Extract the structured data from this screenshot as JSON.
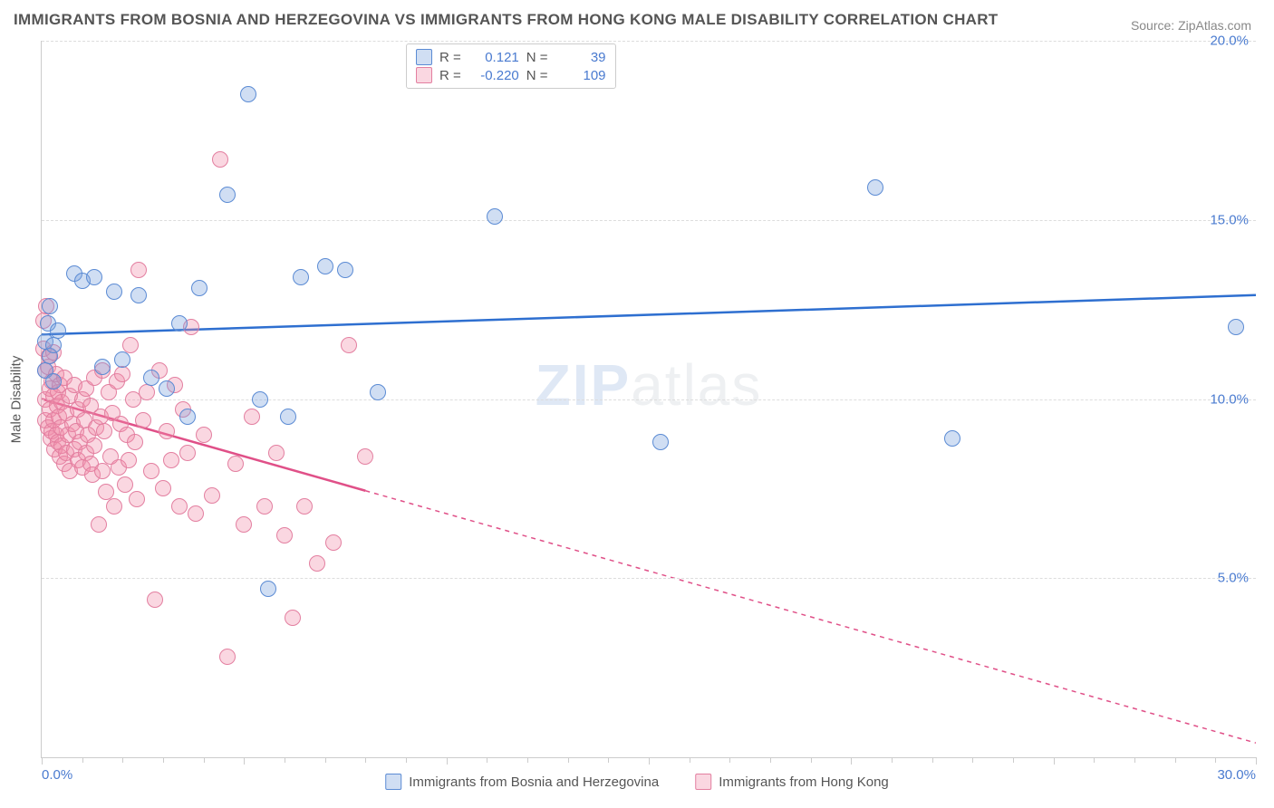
{
  "title": "IMMIGRANTS FROM BOSNIA AND HERZEGOVINA VS IMMIGRANTS FROM HONG KONG MALE DISABILITY CORRELATION CHART",
  "source": "Source: ZipAtlas.com",
  "watermark_zip": "ZIP",
  "watermark_atlas": "atlas",
  "y_axis_label": "Male Disability",
  "chart": {
    "type": "scatter",
    "background_color": "#ffffff",
    "grid_color": "#dddddd",
    "axis_color": "#cccccc",
    "xlim": [
      0,
      30
    ],
    "ylim": [
      0,
      20
    ],
    "x_ticks": [
      0,
      1,
      2,
      3,
      4,
      5,
      6,
      7,
      8,
      9,
      10,
      11,
      12,
      13,
      14,
      15,
      16,
      17,
      18,
      19,
      20,
      21,
      22,
      23,
      24,
      25,
      26,
      27,
      28,
      29,
      30
    ],
    "x_major_ticks": [
      0,
      5,
      10,
      15,
      20,
      25,
      30
    ],
    "y_gridlines": [
      5,
      10,
      15,
      20
    ],
    "x_tick_labels": {
      "start": "0.0%",
      "end": "30.0%"
    },
    "y_tick_labels": [
      "5.0%",
      "10.0%",
      "15.0%",
      "20.0%"
    ],
    "marker_radius": 9,
    "series": [
      {
        "name": "Immigrants from Bosnia and Herzegovina",
        "fill": "rgba(120,160,220,0.35)",
        "stroke": "#5b8bd4",
        "line_color": "#2e6fd0",
        "trend": {
          "y_at_x0": 11.8,
          "y_at_xmax": 12.9,
          "solid_until_x": 30
        },
        "R_label": "R =",
        "R": "0.121",
        "N_label": "N =",
        "N": "39",
        "points": [
          [
            0.1,
            11.6
          ],
          [
            0.1,
            10.8
          ],
          [
            0.15,
            12.1
          ],
          [
            0.2,
            11.2
          ],
          [
            0.2,
            12.6
          ],
          [
            0.3,
            10.5
          ],
          [
            0.3,
            11.5
          ],
          [
            0.4,
            11.9
          ],
          [
            0.8,
            13.5
          ],
          [
            1.0,
            13.3
          ],
          [
            1.3,
            13.4
          ],
          [
            1.5,
            10.9
          ],
          [
            1.8,
            13.0
          ],
          [
            2.0,
            11.1
          ],
          [
            2.4,
            12.9
          ],
          [
            2.7,
            10.6
          ],
          [
            3.1,
            10.3
          ],
          [
            3.4,
            12.1
          ],
          [
            3.6,
            9.5
          ],
          [
            3.9,
            13.1
          ],
          [
            4.6,
            15.7
          ],
          [
            5.1,
            18.5
          ],
          [
            5.4,
            10.0
          ],
          [
            5.6,
            4.7
          ],
          [
            6.1,
            9.5
          ],
          [
            6.4,
            13.4
          ],
          [
            7.0,
            13.7
          ],
          [
            7.5,
            13.6
          ],
          [
            8.3,
            10.2
          ],
          [
            11.2,
            15.1
          ],
          [
            15.3,
            8.8
          ],
          [
            20.6,
            15.9
          ],
          [
            22.5,
            8.9
          ],
          [
            29.5,
            12.0
          ]
        ]
      },
      {
        "name": "Immigrants from Hong Kong",
        "fill": "rgba(240,140,170,0.35)",
        "stroke": "#e37fa0",
        "line_color": "#e05088",
        "trend": {
          "y_at_x0": 10.0,
          "y_at_xmax": 0.4,
          "solid_until_x": 8
        },
        "R_label": "R =",
        "R": "-0.220",
        "N_label": "N =",
        "N": "109",
        "points": [
          [
            0.05,
            12.2
          ],
          [
            0.05,
            11.4
          ],
          [
            0.08,
            10.8
          ],
          [
            0.1,
            10.0
          ],
          [
            0.1,
            9.4
          ],
          [
            0.12,
            12.6
          ],
          [
            0.15,
            10.9
          ],
          [
            0.15,
            9.2
          ],
          [
            0.18,
            11.2
          ],
          [
            0.2,
            10.3
          ],
          [
            0.2,
            9.7
          ],
          [
            0.22,
            8.9
          ],
          [
            0.25,
            10.5
          ],
          [
            0.25,
            9.1
          ],
          [
            0.28,
            10.1
          ],
          [
            0.3,
            11.3
          ],
          [
            0.3,
            9.4
          ],
          [
            0.32,
            8.6
          ],
          [
            0.35,
            10.7
          ],
          [
            0.35,
            9.0
          ],
          [
            0.38,
            9.8
          ],
          [
            0.4,
            10.2
          ],
          [
            0.4,
            8.8
          ],
          [
            0.42,
            9.5
          ],
          [
            0.45,
            10.4
          ],
          [
            0.45,
            8.4
          ],
          [
            0.48,
            9.2
          ],
          [
            0.5,
            9.9
          ],
          [
            0.5,
            8.7
          ],
          [
            0.55,
            10.6
          ],
          [
            0.55,
            8.2
          ],
          [
            0.6,
            9.6
          ],
          [
            0.6,
            8.5
          ],
          [
            0.65,
            9.0
          ],
          [
            0.7,
            10.1
          ],
          [
            0.7,
            8.0
          ],
          [
            0.75,
            9.3
          ],
          [
            0.8,
            8.6
          ],
          [
            0.8,
            10.4
          ],
          [
            0.85,
            9.1
          ],
          [
            0.9,
            8.3
          ],
          [
            0.9,
            9.7
          ],
          [
            0.95,
            8.8
          ],
          [
            1.0,
            10.0
          ],
          [
            1.0,
            8.1
          ],
          [
            1.05,
            9.4
          ],
          [
            1.1,
            8.5
          ],
          [
            1.1,
            10.3
          ],
          [
            1.15,
            9.0
          ],
          [
            1.2,
            8.2
          ],
          [
            1.2,
            9.8
          ],
          [
            1.25,
            7.9
          ],
          [
            1.3,
            10.6
          ],
          [
            1.3,
            8.7
          ],
          [
            1.35,
            9.2
          ],
          [
            1.4,
            6.5
          ],
          [
            1.45,
            9.5
          ],
          [
            1.5,
            10.8
          ],
          [
            1.5,
            8.0
          ],
          [
            1.55,
            9.1
          ],
          [
            1.6,
            7.4
          ],
          [
            1.65,
            10.2
          ],
          [
            1.7,
            8.4
          ],
          [
            1.75,
            9.6
          ],
          [
            1.8,
            7.0
          ],
          [
            1.85,
            10.5
          ],
          [
            1.9,
            8.1
          ],
          [
            1.95,
            9.3
          ],
          [
            2.0,
            10.7
          ],
          [
            2.05,
            7.6
          ],
          [
            2.1,
            9.0
          ],
          [
            2.15,
            8.3
          ],
          [
            2.2,
            11.5
          ],
          [
            2.25,
            10.0
          ],
          [
            2.3,
            8.8
          ],
          [
            2.35,
            7.2
          ],
          [
            2.4,
            13.6
          ],
          [
            2.5,
            9.4
          ],
          [
            2.6,
            10.2
          ],
          [
            2.7,
            8.0
          ],
          [
            2.8,
            4.4
          ],
          [
            2.9,
            10.8
          ],
          [
            3.0,
            7.5
          ],
          [
            3.1,
            9.1
          ],
          [
            3.2,
            8.3
          ],
          [
            3.3,
            10.4
          ],
          [
            3.4,
            7.0
          ],
          [
            3.5,
            9.7
          ],
          [
            3.6,
            8.5
          ],
          [
            3.7,
            12.0
          ],
          [
            3.8,
            6.8
          ],
          [
            4.0,
            9.0
          ],
          [
            4.2,
            7.3
          ],
          [
            4.4,
            16.7
          ],
          [
            4.6,
            2.8
          ],
          [
            4.8,
            8.2
          ],
          [
            5.0,
            6.5
          ],
          [
            5.2,
            9.5
          ],
          [
            5.5,
            7.0
          ],
          [
            5.8,
            8.5
          ],
          [
            6.0,
            6.2
          ],
          [
            6.2,
            3.9
          ],
          [
            6.5,
            7.0
          ],
          [
            6.8,
            5.4
          ],
          [
            7.2,
            6.0
          ],
          [
            7.6,
            11.5
          ],
          [
            8.0,
            8.4
          ]
        ]
      }
    ]
  },
  "legend": {
    "series1": "Immigrants from Bosnia and Herzegovina",
    "series2": "Immigrants from Hong Kong"
  }
}
